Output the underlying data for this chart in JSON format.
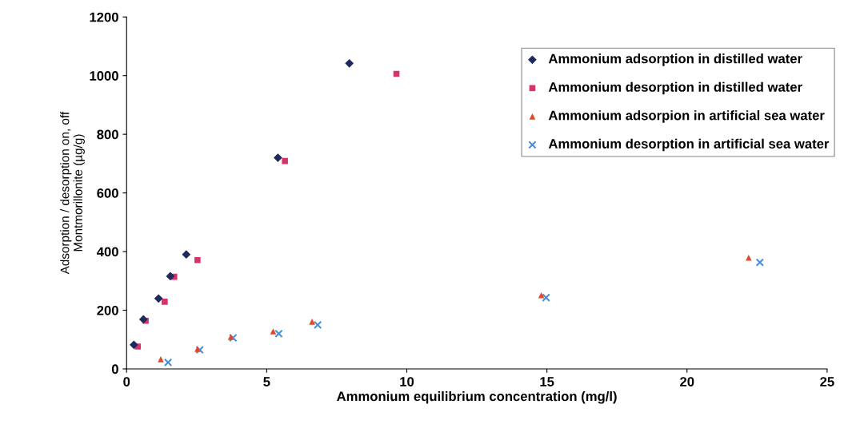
{
  "chart_data": {
    "type": "scatter",
    "xlabel": "Ammonium equilibrium concentration (mg/l)",
    "ylabel": "Adsorption / desorption on, off\nMontmorillonite (µg/g)",
    "xlim": [
      0,
      25
    ],
    "xticks": [
      0,
      5,
      10,
      15,
      20,
      25
    ],
    "ylim": [
      0,
      1200
    ],
    "yticks": [
      0,
      200,
      400,
      600,
      800,
      1000,
      1200
    ],
    "grid": false,
    "legend": "top right",
    "series": [
      {
        "name": "Ammonium adsorption in distilled water",
        "color": "#1f2a5c",
        "marker": "diamond",
        "x": [
          0.26,
          0.6,
          1.14,
          1.56,
          2.13,
          5.4,
          7.95
        ],
        "values": [
          82,
          169,
          240,
          316,
          390,
          720,
          1042
        ]
      },
      {
        "name": "Ammonium desorption in distilled water",
        "color": "#d6336c",
        "marker": "square",
        "x": [
          0.4,
          0.68,
          1.36,
          1.7,
          2.53,
          5.65,
          9.63
        ],
        "values": [
          76,
          164,
          229,
          314,
          371,
          709,
          1006
        ]
      },
      {
        "name": "Ammonium adsorpion in artificial sea water",
        "color": "#e0492a",
        "marker": "triangle",
        "x": [
          1.22,
          2.53,
          3.72,
          5.23,
          6.62,
          14.8,
          22.2
        ],
        "values": [
          33,
          68,
          109,
          128,
          161,
          251,
          379
        ]
      },
      {
        "name": "Ammonium desorption in artificial sea water",
        "color": "#4a90d9",
        "marker": "cross",
        "x": [
          1.48,
          2.61,
          3.8,
          5.43,
          6.82,
          14.97,
          22.6
        ],
        "values": [
          22,
          65,
          106,
          120,
          150,
          243,
          363
        ]
      }
    ]
  }
}
